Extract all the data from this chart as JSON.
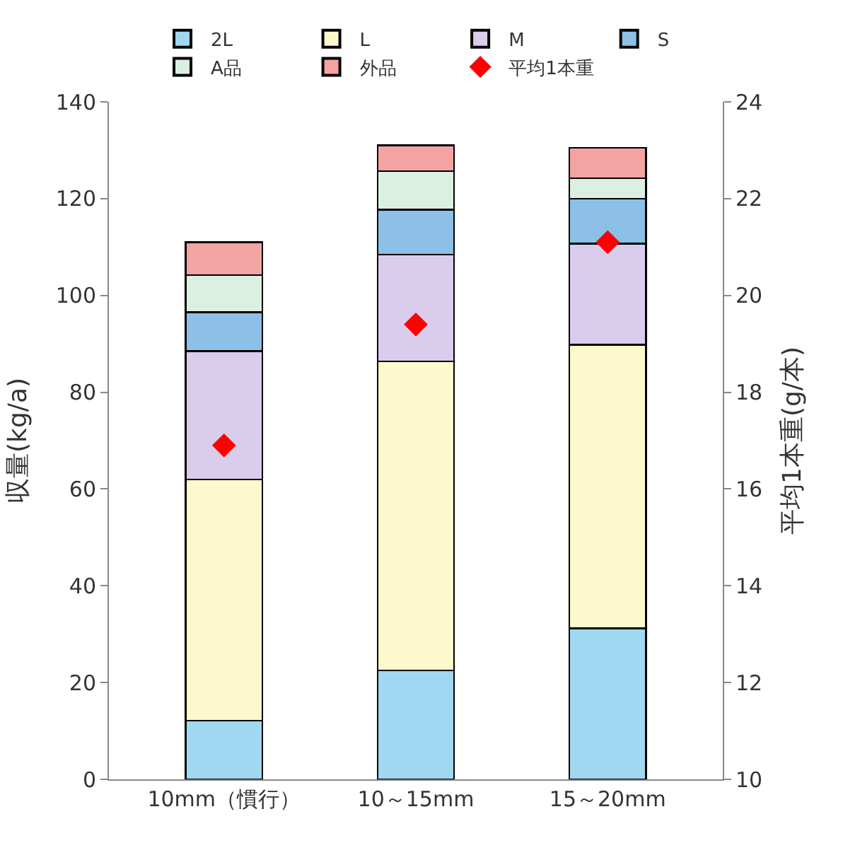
{
  "chart_data": {
    "type": "bar",
    "stacked": true,
    "categories": [
      "10mm（慣行）",
      "10～15mm",
      "15～20mm"
    ],
    "ylabel": "収量(kg/a)",
    "y2label": "平均1本重(g/本)",
    "ylim": [
      0,
      140
    ],
    "yticks": [
      0,
      20,
      40,
      60,
      80,
      100,
      120,
      140
    ],
    "y2lim": [
      10,
      24
    ],
    "y2ticks": [
      10,
      12,
      14,
      16,
      18,
      20,
      22,
      24
    ],
    "grid": false,
    "legend": "top",
    "series": [
      {
        "name": "2L",
        "color": "#9fd8f0",
        "values": [
          12.1,
          22.5,
          31.2
        ]
      },
      {
        "name": "L",
        "color": "#fdf9cc",
        "values": [
          49.9,
          63.9,
          58.6
        ]
      },
      {
        "name": "M",
        "color": "#d9ccec",
        "values": [
          26.5,
          22,
          20.9
        ]
      },
      {
        "name": "S",
        "color": "#8cc0e6",
        "values": [
          8,
          9.3,
          9.3
        ]
      },
      {
        "name": "A品",
        "color": "#dcefe3",
        "values": [
          7.7,
          8,
          4.2
        ]
      },
      {
        "name": "外品",
        "color": "#f4a3a3",
        "values": [
          6.8,
          5.3,
          6.3
        ]
      },
      {
        "name": "平均1本重",
        "type": "scatter",
        "axis": "y2",
        "marker": "diamond",
        "color": "#ff0000",
        "values": [
          16.9,
          19.4,
          21.1
        ]
      }
    ]
  }
}
